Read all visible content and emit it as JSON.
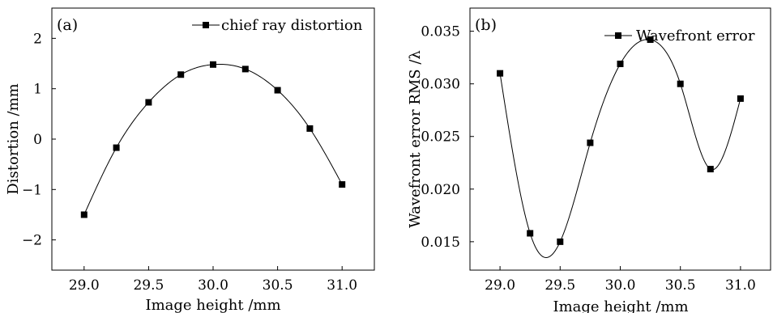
{
  "chart_data": [
    {
      "type": "line",
      "panel_label": "(a)",
      "xlabel": "Image height /mm",
      "ylabel": "Distortion /mm",
      "xlim": [
        28.75,
        31.25
      ],
      "ylim": [
        -2.6,
        2.6
      ],
      "xticks": [
        "29.0",
        "29.5",
        "30.0",
        "30.5",
        "31.0"
      ],
      "yticks": [
        "2",
        "1",
        "0",
        "−1",
        "−2"
      ],
      "legend": "top-right",
      "grid": false,
      "series": [
        {
          "name": "chief ray distortion",
          "marker": "square",
          "smooth": true,
          "x": [
            29.0,
            29.25,
            29.5,
            29.75,
            30.0,
            30.25,
            30.5,
            30.75,
            31.0
          ],
          "y": [
            -1.5,
            -0.17,
            0.73,
            1.28,
            1.48,
            1.39,
            0.97,
            0.21,
            -0.9
          ]
        }
      ]
    },
    {
      "type": "line",
      "panel_label": "(b)",
      "xlabel": "Image height /mm",
      "ylabel": "Wavefront error RMS /λ",
      "xlim": [
        28.75,
        31.25
      ],
      "ylim": [
        0.0123,
        0.0372
      ],
      "xticks": [
        "29.0",
        "29.5",
        "30.0",
        "30.5",
        "31.0"
      ],
      "yticks": [
        "0.035",
        "0.030",
        "0.025",
        "0.020",
        "0.015"
      ],
      "legend": "top-right",
      "grid": false,
      "series": [
        {
          "name": "Wavefront error",
          "marker": "square",
          "smooth": true,
          "x": [
            29.0,
            29.25,
            29.5,
            29.75,
            30.0,
            30.25,
            30.5,
            30.75,
            31.0
          ],
          "y": [
            0.031,
            0.0158,
            0.015,
            0.0244,
            0.0319,
            0.0342,
            0.03,
            0.0219,
            0.0286
          ]
        }
      ]
    }
  ]
}
